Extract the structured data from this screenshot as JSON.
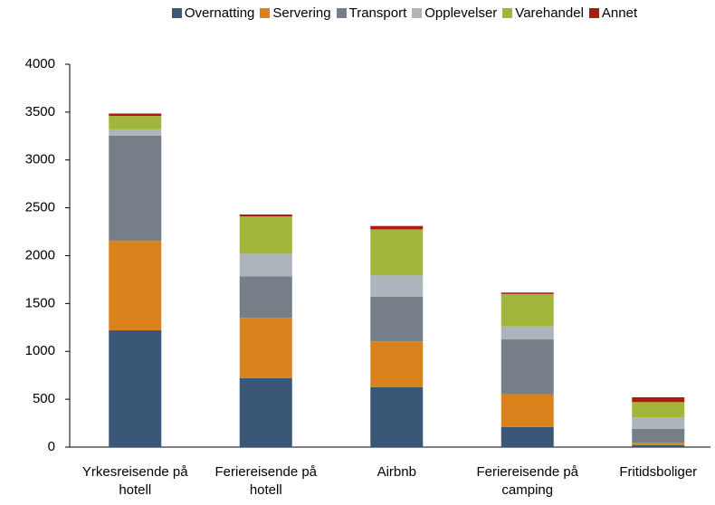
{
  "chart_data": {
    "type": "stacked_bar",
    "categories": [
      "Yrkesreisende på hotell",
      "Feriereisende på hotell",
      "Airbnb",
      "Feriereisende på camping",
      "Fritidsboliger"
    ],
    "series": [
      {
        "name": "Overnatting",
        "color": "#3a5778",
        "values": [
          1220,
          720,
          625,
          210,
          20
        ]
      },
      {
        "name": "Servering",
        "color": "#d9821c",
        "values": [
          935,
          630,
          480,
          340,
          25
        ]
      },
      {
        "name": "Transport",
        "color": "#767f88",
        "values": [
          1100,
          435,
          465,
          575,
          145
        ]
      },
      {
        "name": "Opplevelser",
        "color": "#aeb4bb",
        "values": [
          65,
          235,
          225,
          135,
          120
        ]
      },
      {
        "name": "Varehandel",
        "color": "#a3b63c",
        "values": [
          140,
          390,
          480,
          340,
          160
        ]
      },
      {
        "name": "Annet",
        "color": "#a71d12",
        "values": [
          25,
          20,
          35,
          15,
          50
        ]
      }
    ],
    "ylim": [
      0,
      4000
    ],
    "yticks": [
      0,
      500,
      1000,
      1500,
      2000,
      2500,
      3000,
      3500,
      4000
    ],
    "legend": "top",
    "grid": false
  }
}
